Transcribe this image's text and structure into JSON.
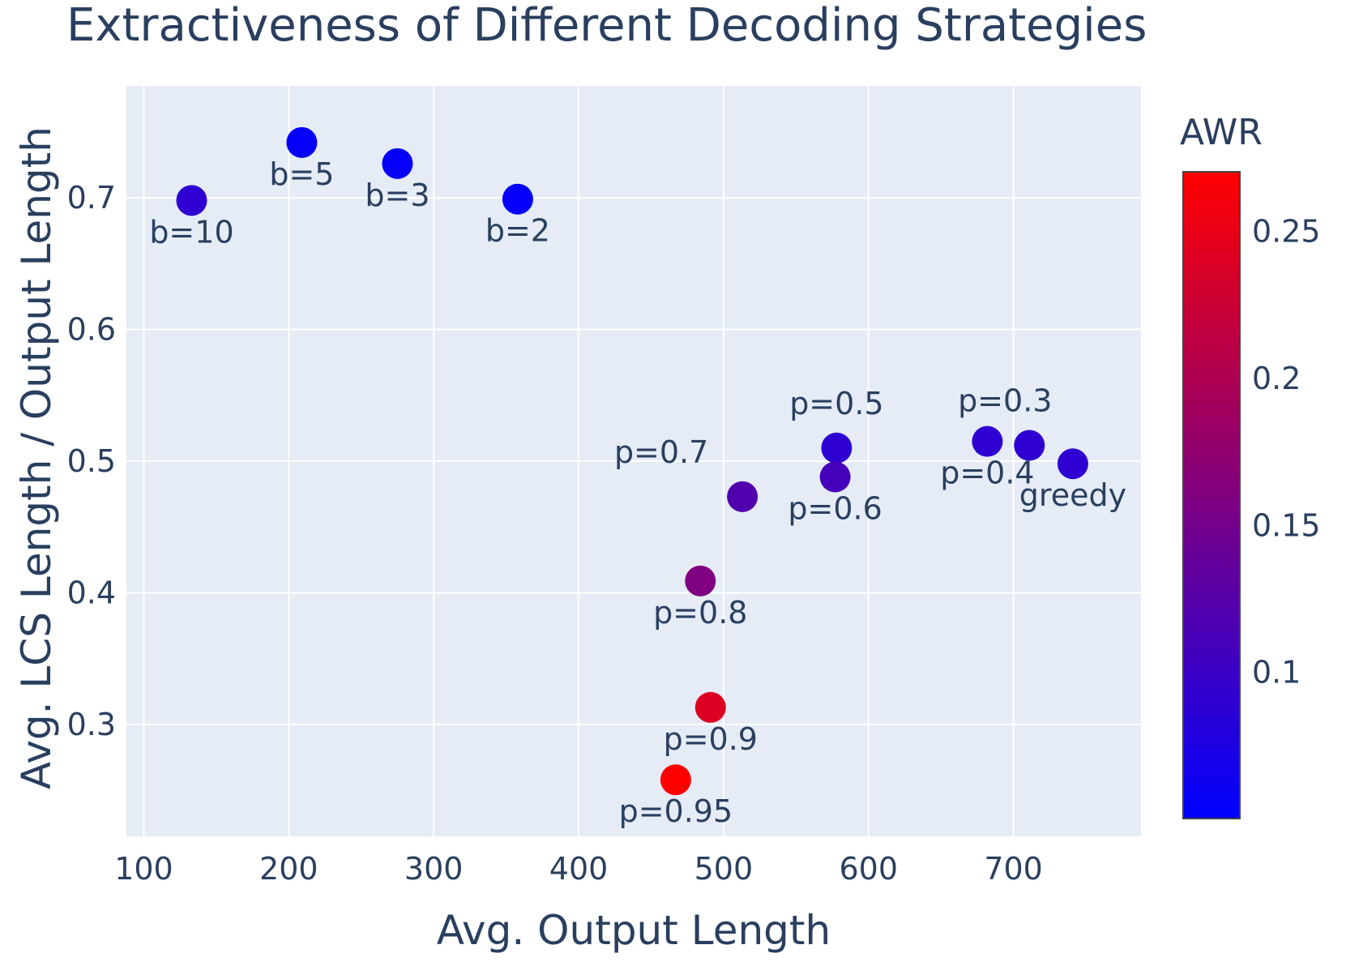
{
  "chart_data": {
    "type": "scatter",
    "title": "Extractiveness of Different Decoding Strategies",
    "xlabel": "Avg. Output Length",
    "ylabel": "Avg. LCS Length / Output Length",
    "xlim": [
      88,
      788
    ],
    "ylim": [
      0.215,
      0.785
    ],
    "xticks": [
      100,
      200,
      300,
      400,
      500,
      600,
      700
    ],
    "xtick_labels": [
      "100",
      "200",
      "300",
      "400",
      "500",
      "600",
      "700"
    ],
    "yticks": [
      0.3,
      0.4,
      0.5,
      0.6,
      0.7
    ],
    "ytick_labels": [
      "0.3",
      "0.4",
      "0.5",
      "0.6",
      "0.7"
    ],
    "grid": true,
    "plot_background": "#e5ecf6",
    "colorbar": {
      "title": "AWR",
      "min": 0.05,
      "max": 0.27,
      "ticks": [
        0.1,
        0.15,
        0.2,
        0.25
      ],
      "tick_labels": [
        "0.1",
        "0.15",
        "0.2",
        "0.25"
      ],
      "colorscale": [
        "#0000ff",
        "#ff0000"
      ]
    },
    "points": [
      {
        "label": "b=10",
        "x": 133,
        "y": 0.698,
        "awr": 0.09,
        "label_pos": "below"
      },
      {
        "label": "b=5",
        "x": 209,
        "y": 0.742,
        "awr": 0.055,
        "label_pos": "below"
      },
      {
        "label": "b=3",
        "x": 275,
        "y": 0.726,
        "awr": 0.055,
        "label_pos": "below"
      },
      {
        "label": "b=2",
        "x": 358,
        "y": 0.699,
        "awr": 0.055,
        "label_pos": "below"
      },
      {
        "label": "p=0.7",
        "x": 513,
        "y": 0.473,
        "awr": 0.12,
        "label_pos": "upper-left"
      },
      {
        "label": "p=0.5",
        "x": 578,
        "y": 0.51,
        "awr": 0.09,
        "label_pos": "above"
      },
      {
        "label": "p=0.6",
        "x": 577,
        "y": 0.488,
        "awr": 0.11,
        "label_pos": "below"
      },
      {
        "label": "p=0.3",
        "x": 711,
        "y": 0.512,
        "awr": 0.09,
        "label_pos": "above-left"
      },
      {
        "label": "p=0.4",
        "x": 682,
        "y": 0.515,
        "awr": 0.09,
        "label_pos": "below"
      },
      {
        "label": "greedy",
        "x": 741,
        "y": 0.498,
        "awr": 0.09,
        "label_pos": "below"
      },
      {
        "label": "p=0.8",
        "x": 484,
        "y": 0.409,
        "awr": 0.16,
        "label_pos": "below"
      },
      {
        "label": "p=0.9",
        "x": 491,
        "y": 0.313,
        "awr": 0.24,
        "label_pos": "below"
      },
      {
        "label": "p=0.95",
        "x": 467,
        "y": 0.258,
        "awr": 0.27,
        "label_pos": "below"
      }
    ]
  }
}
